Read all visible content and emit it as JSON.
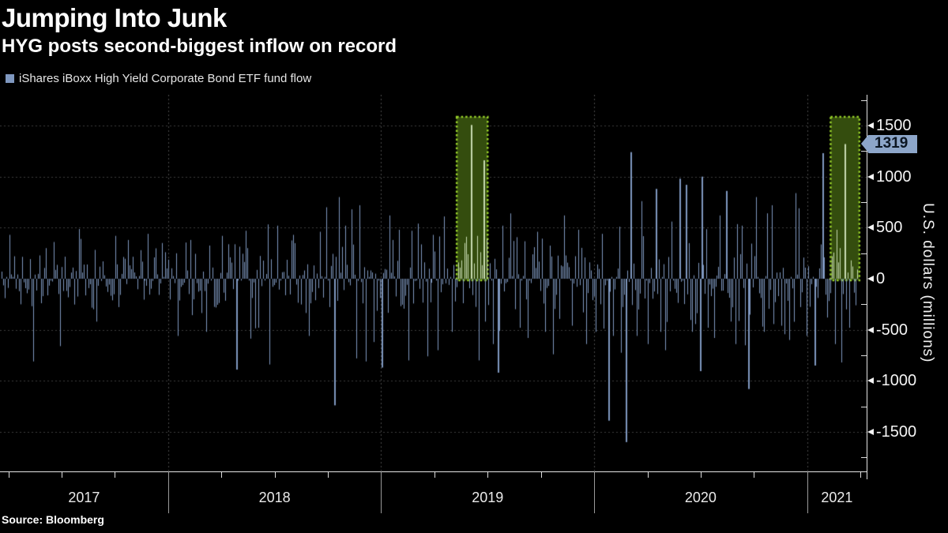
{
  "chart_data": {
    "type": "bar",
    "title": "Jumping Into Junk",
    "subtitle": "HYG posts second-biggest inflow on record",
    "source": "Source: Bloomberg",
    "ylabel": "U.S. dollars (millions)",
    "legend_position": "top-left",
    "grid": "dotted horizontal at 500 intervals, dotted vertical at year boundaries",
    "y_axis": {
      "major_ticks": [
        1500,
        1000,
        500,
        0,
        -500,
        -1000,
        -1500
      ],
      "minor_tick_step": 250,
      "minor_tick_range": [
        -1750,
        1750
      ],
      "domain": [
        -1887,
        1802
      ]
    },
    "x_axis": {
      "year_labels": [
        "2017",
        "2018",
        "2019",
        "2020",
        "2021"
      ],
      "year_boundaries": [
        2018,
        2019,
        2020,
        2021
      ],
      "domain_years": [
        2017.211,
        2021.279
      ],
      "quarter_tick_step": 0.25
    },
    "callout": {
      "value": 1319,
      "label": "1319",
      "meaning": "latest inflow, second-biggest on record"
    },
    "highlights": [
      {
        "name": "record-inflow-mid-2019",
        "x_from": 2019.355,
        "x_to": 2019.5,
        "y_from": -15,
        "y_to": 1585
      },
      {
        "name": "second-biggest-inflow-early-2021",
        "x_from": 2021.11,
        "x_to": 2021.245,
        "y_from": -15,
        "y_to": 1585
      }
    ],
    "series": {
      "name": "iShares iBoxx High Yield Corporate Bond ETF fund flow",
      "unit": "USD millions, daily flows",
      "bar_count": 544,
      "noise": {
        "seed": 1319,
        "era_boundaries_idx": [
          106,
          241,
          376,
          511
        ],
        "era_amplitude": [
          250,
          320,
          350,
          430,
          380
        ]
      },
      "key_points": [
        [
          5,
          430
        ],
        [
          20,
          -810
        ],
        [
          28,
          300
        ],
        [
          33,
          360
        ],
        [
          37,
          -660
        ],
        [
          50,
          390
        ],
        [
          60,
          -420
        ],
        [
          72,
          420
        ],
        [
          80,
          380
        ],
        [
          93,
          440
        ],
        [
          102,
          350
        ],
        [
          112,
          -560
        ],
        [
          120,
          380
        ],
        [
          130,
          -520
        ],
        [
          140,
          420
        ],
        [
          149,
          -890
        ],
        [
          155,
          470
        ],
        [
          163,
          -480
        ],
        [
          170,
          -840
        ],
        [
          175,
          520
        ],
        [
          185,
          430
        ],
        [
          195,
          -560
        ],
        [
          202,
          460
        ],
        [
          206,
          700
        ],
        [
          211,
          -1240
        ],
        [
          214,
          800
        ],
        [
          218,
          520
        ],
        [
          222,
          680
        ],
        [
          225,
          -780
        ],
        [
          227,
          720
        ],
        [
          231,
          -810
        ],
        [
          236,
          -620
        ],
        [
          241,
          -870
        ],
        [
          246,
          620
        ],
        [
          252,
          480
        ],
        [
          258,
          -800
        ],
        [
          260,
          470
        ],
        [
          264,
          540
        ],
        [
          270,
          -760
        ],
        [
          274,
          430
        ],
        [
          277,
          -700
        ],
        [
          281,
          610
        ],
        [
          286,
          -520
        ],
        [
          290,
          160
        ],
        [
          292,
          180
        ],
        [
          293,
          -240
        ],
        [
          294,
          350
        ],
        [
          296,
          240
        ],
        [
          298,
          1506
        ],
        [
          299,
          -160
        ],
        [
          300,
          150
        ],
        [
          302,
          420
        ],
        [
          303,
          -800
        ],
        [
          304,
          260
        ],
        [
          306,
          1160
        ],
        [
          307,
          -420
        ],
        [
          308,
          390
        ],
        [
          312,
          -640
        ],
        [
          315,
          -920
        ],
        [
          318,
          520
        ],
        [
          323,
          640
        ],
        [
          329,
          -480
        ],
        [
          334,
          -580
        ],
        [
          340,
          460
        ],
        [
          345,
          -520
        ],
        [
          350,
          -740
        ],
        [
          357,
          620
        ],
        [
          362,
          -460
        ],
        [
          366,
          480
        ],
        [
          371,
          -640
        ],
        [
          377,
          -520
        ],
        [
          381,
          440
        ],
        [
          385,
          -1390
        ],
        [
          388,
          -560
        ],
        [
          392,
          510
        ],
        [
          396,
          -1600
        ],
        [
          399,
          1240
        ],
        [
          403,
          -560
        ],
        [
          406,
          760
        ],
        [
          410,
          -640
        ],
        [
          415,
          880
        ],
        [
          418,
          -520
        ],
        [
          421,
          -700
        ],
        [
          425,
          560
        ],
        [
          430,
          980
        ],
        [
          434,
          920
        ],
        [
          438,
          -520
        ],
        [
          443,
          -905
        ],
        [
          444,
          1000
        ],
        [
          448,
          -480
        ],
        [
          452,
          -580
        ],
        [
          456,
          620
        ],
        [
          460,
          860
        ],
        [
          466,
          -640
        ],
        [
          470,
          520
        ],
        [
          474,
          -1080
        ],
        [
          479,
          800
        ],
        [
          484,
          -520
        ],
        [
          489,
          720
        ],
        [
          495,
          -460
        ],
        [
          500,
          -600
        ],
        [
          506,
          690
        ],
        [
          511,
          -560
        ],
        [
          516,
          -850
        ],
        [
          521,
          1230
        ],
        [
          524,
          -380
        ],
        [
          527,
          220
        ],
        [
          529,
          -640
        ],
        [
          530,
          480
        ],
        [
          531,
          160
        ],
        [
          532,
          300
        ],
        [
          533,
          -820
        ],
        [
          535,
          1319
        ],
        [
          536,
          -300
        ],
        [
          538,
          -480
        ],
        [
          539,
          180
        ],
        [
          540,
          120
        ],
        [
          542,
          -260
        ],
        [
          543,
          90
        ]
      ]
    }
  },
  "colors": {
    "background": "#000000",
    "bar": "#7f98c0",
    "bar_highlighted": "#c9dcb2",
    "highlight_fill": "#344d0e",
    "highlight_border": "#98d02a",
    "grid": "#3d3d3d",
    "year_grid": "#4a4a4a",
    "axis": "#e6e6e6",
    "callout_bg": "#8da6c9",
    "callout_text": "#0c1623"
  }
}
